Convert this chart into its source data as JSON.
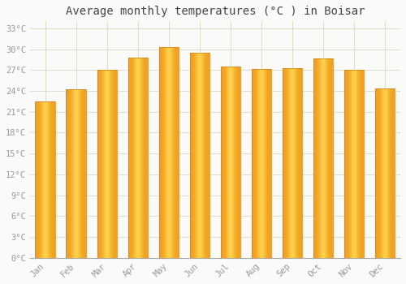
{
  "title": "Average monthly temperatures (°C ) in Boisar",
  "months": [
    "Jan",
    "Feb",
    "Mar",
    "Apr",
    "May",
    "Jun",
    "Jul",
    "Aug",
    "Sep",
    "Oct",
    "Nov",
    "Dec"
  ],
  "temperatures": [
    22.5,
    24.2,
    27.0,
    28.8,
    30.3,
    29.5,
    27.5,
    27.2,
    27.3,
    28.7,
    27.0,
    24.3
  ],
  "bar_color_center": "#FFD04A",
  "bar_color_edge": "#F0A020",
  "bar_color_top": "#FFBE30",
  "background_color": "#FAFAF8",
  "plot_bg_color": "#FAFAF8",
  "ytick_labels": [
    "0°C",
    "3°C",
    "6°C",
    "9°C",
    "12°C",
    "15°C",
    "18°C",
    "21°C",
    "24°C",
    "27°C",
    "30°C",
    "33°C"
  ],
  "ytick_values": [
    0,
    3,
    6,
    9,
    12,
    15,
    18,
    21,
    24,
    27,
    30,
    33
  ],
  "ylim": [
    0,
    34
  ],
  "grid_color": "#DDDDCC",
  "title_fontsize": 10,
  "tick_fontsize": 7.5,
  "label_color": "#999999",
  "bar_width": 0.65
}
